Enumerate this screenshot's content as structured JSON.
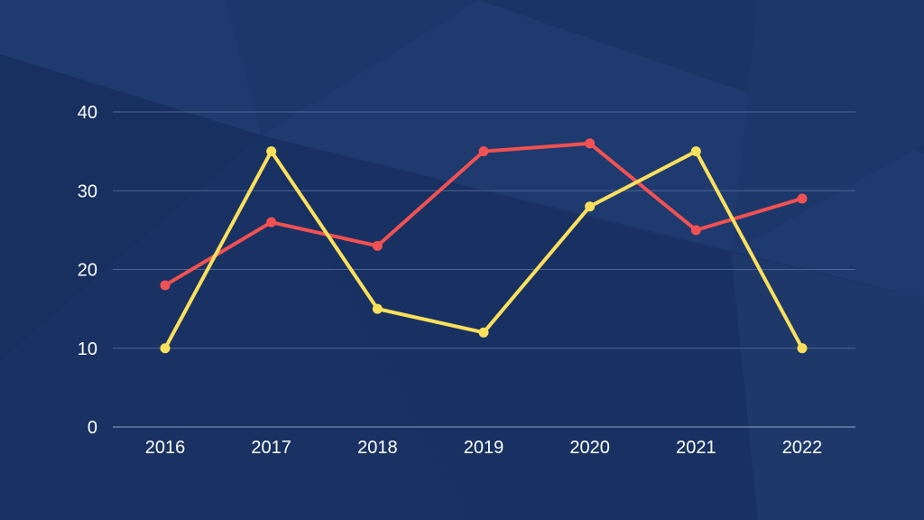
{
  "colors": {
    "background": "#1a3466",
    "gridline": "#4d6592",
    "axis": "#8fa3c7",
    "text": "#ffffff"
  },
  "chart_data": {
    "type": "line",
    "title": "",
    "xlabel": "",
    "ylabel": "",
    "categories": [
      "2016",
      "2017",
      "2018",
      "2019",
      "2020",
      "2021",
      "2022"
    ],
    "yticks": [
      "0",
      "10",
      "20",
      "30",
      "40"
    ],
    "ylim": [
      0,
      40
    ],
    "grid": true,
    "legend": "none",
    "series": [
      {
        "color": "#f25151",
        "values": [
          18,
          26,
          23,
          35,
          36,
          25,
          29
        ]
      },
      {
        "color": "#fbe05c",
        "values": [
          10,
          35,
          15,
          12,
          28,
          35,
          10
        ]
      }
    ]
  }
}
